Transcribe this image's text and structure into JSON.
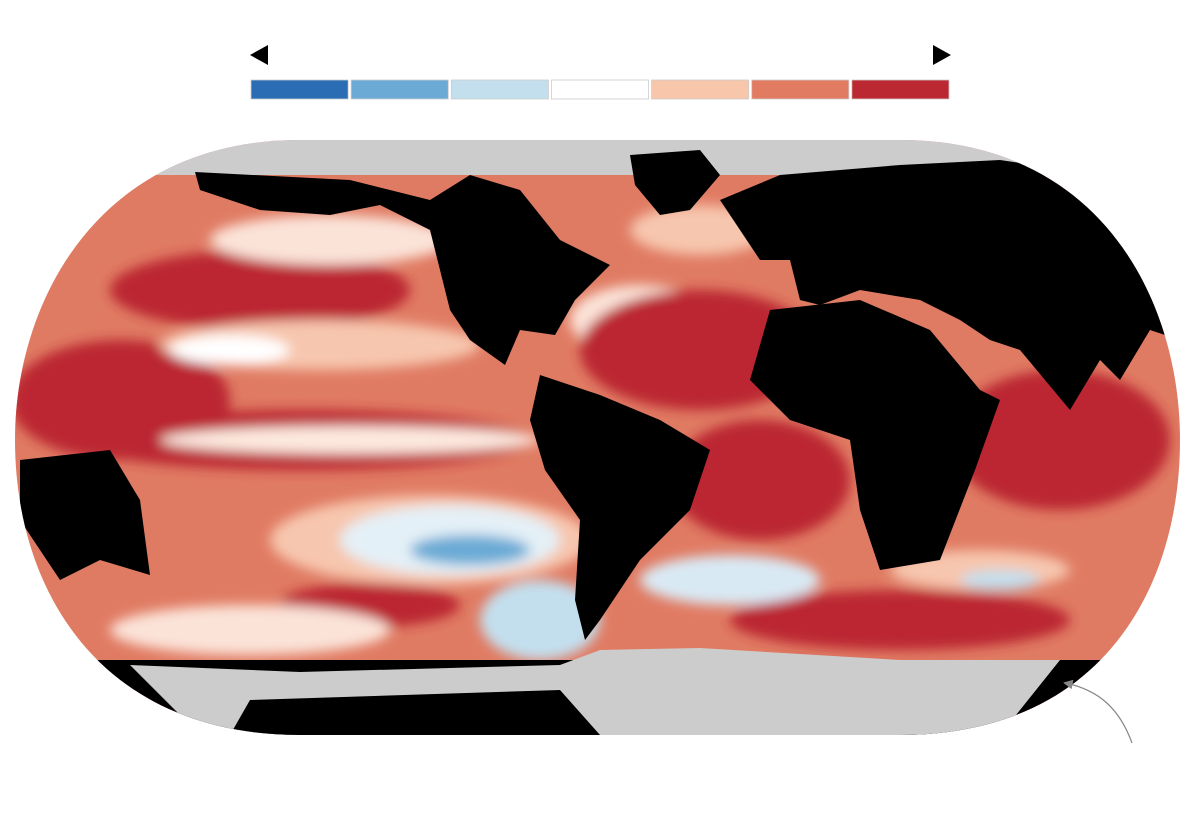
{
  "legend": {
    "colors": [
      "#2a6db4",
      "#6aaad5",
      "#c3dfee",
      "#ffffff",
      "#f8c6ab",
      "#e17b61",
      "#bb2832"
    ]
  }
}
